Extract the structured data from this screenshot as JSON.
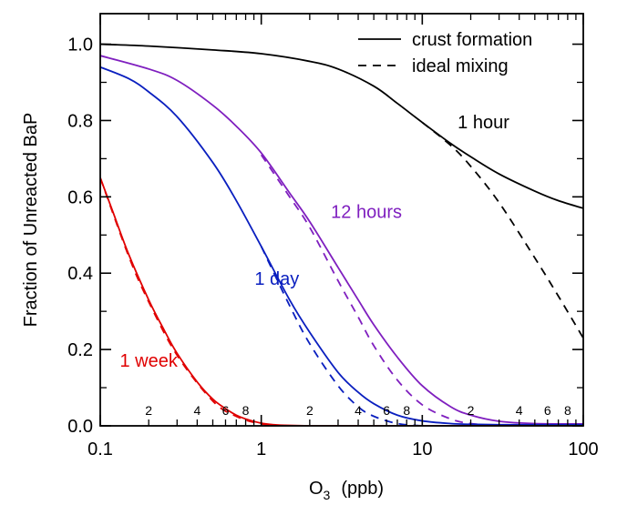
{
  "chart_data": {
    "type": "line",
    "xlabel": "O",
    "xlabel_sub": "3",
    "xlabel_unit": "(ppb)",
    "ylabel": "Fraction of Unreacted BaP",
    "x_scale": "log",
    "xlim": [
      0.1,
      100
    ],
    "ylim": [
      0.0,
      1.08
    ],
    "x_major_ticks": [
      {
        "value": 0.1,
        "label": "0.1"
      },
      {
        "value": 1,
        "label": "1"
      },
      {
        "value": 10,
        "label": "10"
      },
      {
        "value": 100,
        "label": "100"
      }
    ],
    "x_minor_ticks": [
      {
        "value": 0.2,
        "label": "2"
      },
      {
        "value": 0.3,
        "label": ""
      },
      {
        "value": 0.4,
        "label": "4"
      },
      {
        "value": 0.5,
        "label": ""
      },
      {
        "value": 0.6,
        "label": "6"
      },
      {
        "value": 0.7,
        "label": ""
      },
      {
        "value": 0.8,
        "label": "8"
      },
      {
        "value": 0.9,
        "label": ""
      },
      {
        "value": 2,
        "label": "2"
      },
      {
        "value": 3,
        "label": ""
      },
      {
        "value": 4,
        "label": "4"
      },
      {
        "value": 5,
        "label": ""
      },
      {
        "value": 6,
        "label": "6"
      },
      {
        "value": 7,
        "label": ""
      },
      {
        "value": 8,
        "label": "8"
      },
      {
        "value": 9,
        "label": ""
      },
      {
        "value": 20,
        "label": "2"
      },
      {
        "value": 30,
        "label": ""
      },
      {
        "value": 40,
        "label": "4"
      },
      {
        "value": 50,
        "label": ""
      },
      {
        "value": 60,
        "label": "6"
      },
      {
        "value": 70,
        "label": ""
      },
      {
        "value": 80,
        "label": "8"
      },
      {
        "value": 90,
        "label": ""
      }
    ],
    "y_major_ticks": [
      {
        "value": 0.0,
        "label": "0.0"
      },
      {
        "value": 0.2,
        "label": "0.2"
      },
      {
        "value": 0.4,
        "label": "0.4"
      },
      {
        "value": 0.6,
        "label": "0.6"
      },
      {
        "value": 0.8,
        "label": "0.8"
      },
      {
        "value": 1.0,
        "label": "1.0"
      }
    ],
    "y_minor_ticks": [
      0.1,
      0.3,
      0.5,
      0.7,
      0.9
    ],
    "legend": {
      "placement": "top-right",
      "entries": [
        {
          "label": "crust formation",
          "style": "solid"
        },
        {
          "label": "ideal mixing",
          "style": "dashed"
        }
      ]
    },
    "series": [
      {
        "label": "1 hour",
        "color": "#000000",
        "style": "solid",
        "x": [
          0.1,
          0.2,
          0.5,
          1,
          2,
          3,
          5,
          7,
          10,
          15,
          20,
          30,
          50,
          70,
          100
        ],
        "y": [
          1.0,
          0.995,
          0.985,
          0.975,
          0.955,
          0.935,
          0.89,
          0.845,
          0.795,
          0.74,
          0.705,
          0.66,
          0.615,
          0.59,
          0.57
        ]
      },
      {
        "label": "1 hour",
        "color": "#000000",
        "style": "dashed",
        "x": [
          10,
          15,
          20,
          30,
          50,
          70,
          100
        ],
        "y": [
          0.795,
          0.735,
          0.68,
          0.585,
          0.44,
          0.34,
          0.23
        ]
      },
      {
        "label": "12 hours",
        "color": "#7f1fbf",
        "style": "solid",
        "x": [
          0.1,
          0.2,
          0.3,
          0.5,
          0.7,
          1,
          1.5,
          2,
          3,
          4,
          5,
          7,
          10,
          15,
          20,
          30,
          50,
          100
        ],
        "y": [
          0.97,
          0.935,
          0.905,
          0.84,
          0.785,
          0.715,
          0.61,
          0.535,
          0.415,
          0.33,
          0.265,
          0.18,
          0.105,
          0.05,
          0.028,
          0.012,
          0.006,
          0.005
        ]
      },
      {
        "label": "12 hours",
        "color": "#7f1fbf",
        "style": "dashed",
        "x": [
          1,
          1.5,
          2,
          3,
          4,
          5,
          7,
          10,
          15,
          20,
          30
        ],
        "y": [
          0.71,
          0.6,
          0.52,
          0.38,
          0.285,
          0.21,
          0.12,
          0.055,
          0.018,
          0.006,
          0.0
        ]
      },
      {
        "label": "1 day",
        "color": "#0a1fbf",
        "style": "solid",
        "x": [
          0.1,
          0.15,
          0.2,
          0.3,
          0.5,
          0.7,
          1,
          1.5,
          2,
          3,
          4,
          5,
          7,
          10,
          15,
          20,
          30,
          50,
          100
        ],
        "y": [
          0.94,
          0.91,
          0.875,
          0.81,
          0.69,
          0.59,
          0.47,
          0.33,
          0.245,
          0.14,
          0.088,
          0.058,
          0.028,
          0.013,
          0.006,
          0.004,
          0.003,
          0.003,
          0.003
        ]
      },
      {
        "label": "1 day",
        "color": "#0a1fbf",
        "style": "dashed",
        "x": [
          1,
          1.5,
          2,
          3,
          4,
          5,
          7,
          10
        ],
        "y": [
          0.47,
          0.315,
          0.215,
          0.105,
          0.05,
          0.025,
          0.006,
          0.0
        ]
      },
      {
        "label": "1 week",
        "color": "#e00000",
        "style": "solid",
        "x": [
          0.1,
          0.12,
          0.15,
          0.2,
          0.25,
          0.3,
          0.4,
          0.5,
          0.6,
          0.7,
          0.8,
          1,
          1.2,
          1.5,
          2,
          3,
          5,
          10,
          100
        ],
        "y": [
          0.65,
          0.56,
          0.45,
          0.33,
          0.25,
          0.19,
          0.115,
          0.07,
          0.045,
          0.028,
          0.018,
          0.007,
          0.003,
          0.001,
          0.0,
          0.0,
          0.0,
          0.0,
          0.0
        ]
      },
      {
        "label": "1 week",
        "color": "#e00000",
        "style": "dashed",
        "x": [
          0.1,
          0.15,
          0.2,
          0.3,
          0.5,
          0.7,
          1,
          1.5
        ],
        "y": [
          0.65,
          0.445,
          0.325,
          0.185,
          0.065,
          0.025,
          0.005,
          0.0
        ]
      }
    ],
    "annotations": [
      {
        "text": "1 hour",
        "color": "#000000",
        "x": 24,
        "y": 0.78
      },
      {
        "text": "12 hours",
        "color": "#7f1fbf",
        "x": 4.5,
        "y": 0.545
      },
      {
        "text": "1 day",
        "color": "#0a1fbf",
        "x": 1.25,
        "y": 0.37
      },
      {
        "text": "1 week",
        "color": "#e00000",
        "x": 0.2,
        "y": 0.155
      }
    ]
  }
}
